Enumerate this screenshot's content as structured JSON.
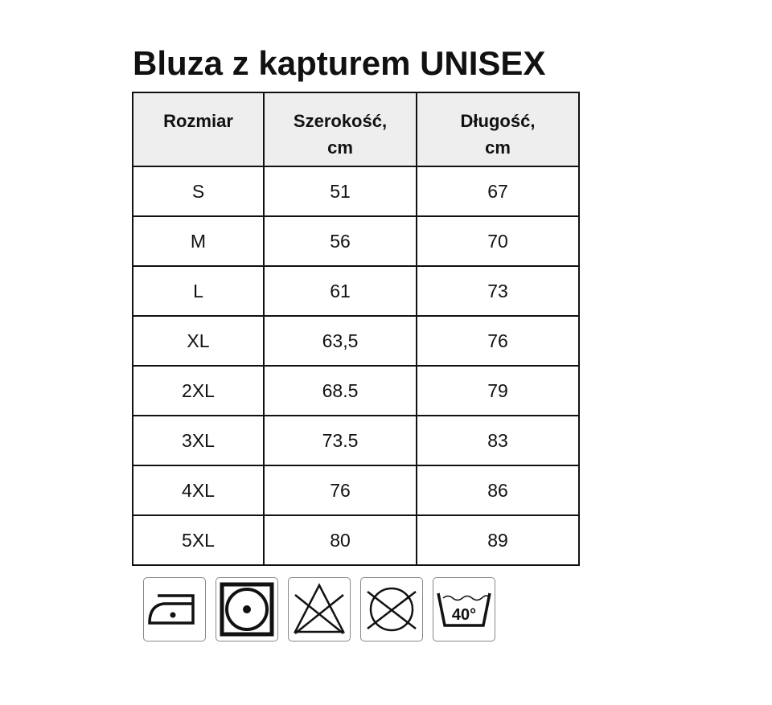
{
  "title": "Bluza z kapturem UNISEX",
  "table": {
    "headers": [
      "Rozmiar",
      "Szerokość,\ncm",
      "Długość,\ncm"
    ],
    "headers_lines": [
      [
        "Rozmiar"
      ],
      [
        "Szerokość,",
        "cm"
      ],
      [
        "Długość,",
        "cm"
      ]
    ],
    "rows": [
      [
        "S",
        "51",
        "67"
      ],
      [
        "M",
        "56",
        "70"
      ],
      [
        "L",
        "61",
        "73"
      ],
      [
        "XL",
        "63,5",
        "76"
      ],
      [
        "2XL",
        "68.5",
        "79"
      ],
      [
        "3XL",
        "73.5",
        "83"
      ],
      [
        "4XL",
        "76",
        "86"
      ],
      [
        "5XL",
        "80",
        "89"
      ]
    ]
  },
  "care_icons": [
    {
      "icon": "iron-medium-heat-icon"
    },
    {
      "icon": "tumble-dry-icon"
    },
    {
      "icon": "do-not-bleach-icon"
    },
    {
      "icon": "do-not-dry-clean-icon"
    },
    {
      "icon": "wash-40-icon",
      "label": "40°"
    }
  ]
}
